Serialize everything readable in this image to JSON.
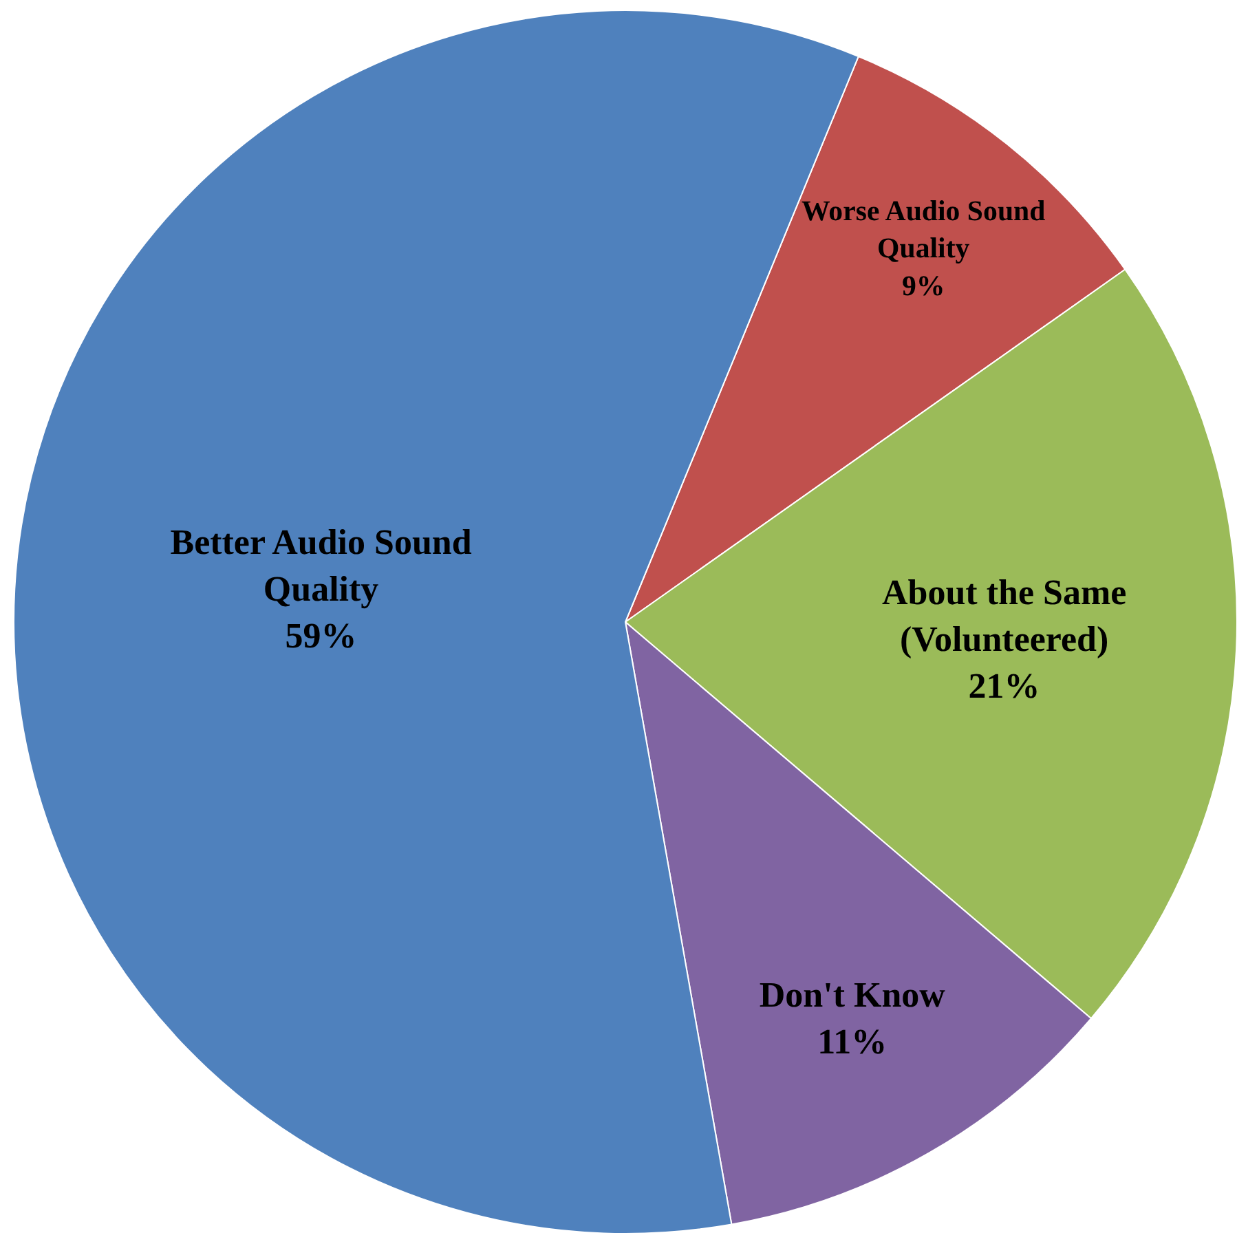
{
  "chart_data": {
    "type": "pie",
    "categories": [
      "Worse Audio Sound Quality",
      "About the Same (Volunteered)",
      "Don't Know",
      "Better Audio Sound Quality"
    ],
    "values": [
      9,
      21,
      11,
      59
    ],
    "value_labels": [
      "9%",
      "21%",
      "11%",
      "59%"
    ],
    "colors": [
      "#c0504d",
      "#9bbb59",
      "#8064a2",
      "#4f81bd"
    ],
    "legend": false
  }
}
